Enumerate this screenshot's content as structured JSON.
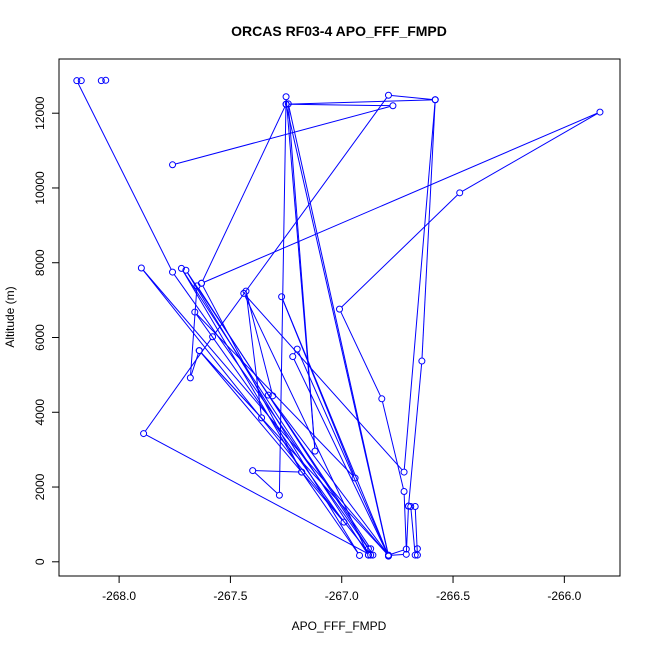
{
  "chart_data": {
    "type": "line",
    "title": "ORCAS RF03-4 APO_FFF_FMPD",
    "xlabel": "APO_FFF_FMPD",
    "ylabel": "Altitude (m)",
    "xlim": [
      -268.27,
      -265.75
    ],
    "ylim": [
      -380,
      13450
    ],
    "xticks": [
      -268.0,
      -267.5,
      -267.0,
      -266.5,
      -266.0
    ],
    "xtick_labels": [
      "-268.0",
      "-267.5",
      "-267.0",
      "-266.5",
      "-266.0"
    ],
    "yticks": [
      0,
      2000,
      4000,
      6000,
      8000,
      10000,
      12000
    ],
    "ytick_labels": [
      "0",
      "2000",
      "4000",
      "6000",
      "8000",
      "10000",
      "12000"
    ],
    "grid": false,
    "line_color": "#0000ff",
    "series": [
      {
        "segments": [
          [
            [
              -268.06,
              12880
            ],
            [
              -268.08,
              12870
            ]
          ],
          [
            [
              -268.17,
              12870
            ],
            [
              -268.19,
              12870
            ],
            [
              -267.76,
              7750
            ],
            [
              -266.88,
              350
            ],
            [
              -266.88,
              180
            ]
          ],
          [
            [
              -267.76,
              10620
            ],
            [
              -266.77,
              12200
            ],
            [
              -267.25,
              12240
            ],
            [
              -266.58,
              12360
            ],
            [
              -266.79,
              12480
            ],
            [
              -267.58,
              6020
            ],
            [
              -267.89,
              3430
            ],
            [
              -266.87,
              180
            ],
            [
              -267.9,
              7860
            ],
            [
              -266.79,
              170
            ],
            [
              -267.64,
              5650
            ],
            [
              -267.68,
              4920
            ],
            [
              -267.65,
              7380
            ],
            [
              -266.86,
              180
            ],
            [
              -266.87,
              350
            ],
            [
              -267.7,
              7800
            ],
            [
              -266.92,
              170
            ],
            [
              -267.18,
              2400
            ],
            [
              -267.72,
              7850
            ],
            [
              -266.88,
              180
            ],
            [
              -267.44,
              7180
            ],
            [
              -266.72,
              2400
            ],
            [
              -266.58,
              12360
            ],
            [
              -266.64,
              5370
            ],
            [
              -266.7,
              1490
            ],
            [
              -266.67,
              1480
            ],
            [
              -266.66,
              180
            ],
            [
              -266.66,
              350
            ],
            [
              -266.67,
              180
            ],
            [
              -266.69,
              1480
            ],
            [
              -266.7,
              1490
            ],
            [
              -266.71,
              200
            ],
            [
              -266.79,
              170
            ],
            [
              -267.24,
              12250
            ],
            [
              -267.12,
              2960
            ],
            [
              -267.25,
              12440
            ],
            [
              -267.28,
              1780
            ],
            [
              -267.4,
              2440
            ],
            [
              -267.18,
              2400
            ],
            [
              -267.63,
              7450
            ],
            [
              -267.25,
              12240
            ],
            [
              -266.79,
              150
            ],
            [
              -267.22,
              5490
            ],
            [
              -267.2,
              5690
            ],
            [
              -266.79,
              160
            ],
            [
              -267.27,
              7090
            ],
            [
              -266.94,
              2240
            ],
            [
              -267.66,
              6680
            ],
            [
              -266.99,
              1060
            ],
            [
              -267.64,
              5650
            ],
            [
              -267.36,
              3850
            ],
            [
              -267.43,
              7240
            ],
            [
              -267.31,
              4440
            ],
            [
              -267.33,
              4460
            ],
            [
              -266.79,
              180
            ],
            [
              -266.71,
              340
            ],
            [
              -266.72,
              1880
            ],
            [
              -266.82,
              4360
            ],
            [
              -267.01,
              6760
            ],
            [
              -266.47,
              9870
            ],
            [
              -265.84,
              12030
            ],
            [
              -267.63,
              7450
            ]
          ]
        ]
      }
    ]
  }
}
